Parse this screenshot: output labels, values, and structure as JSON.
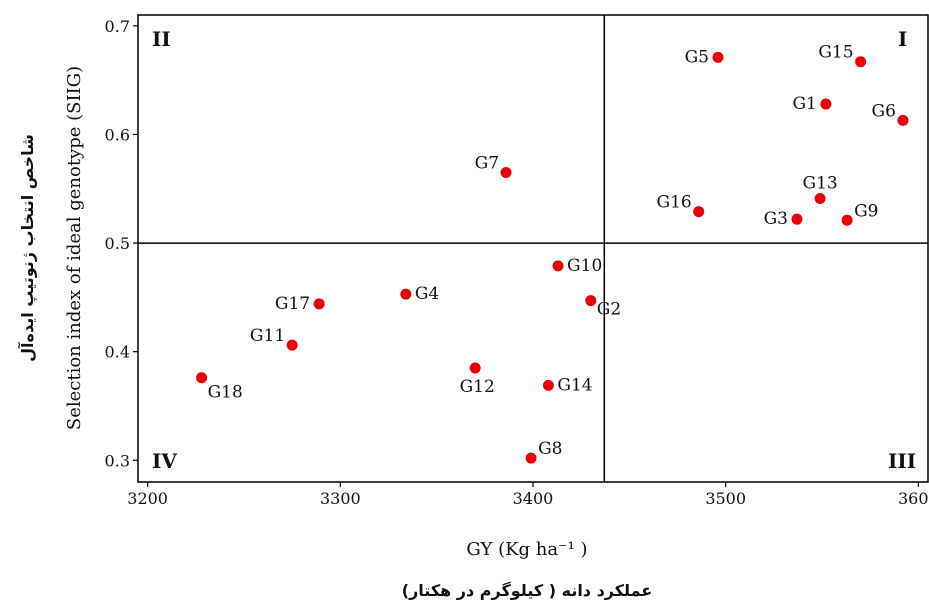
{
  "chart_data": {
    "type": "scatter",
    "xlabel": "GY (Kg ha⁻¹ )",
    "xlabel_translation": "عملکرد دانه ( کیلوگرم در هکتار)",
    "ylabel": "Selection index of ideal genotype (SIIG)",
    "ylabel_translation": "شاخص انتخاب ژنوتیپ ایده‌آل",
    "xlim": [
      3195,
      3605
    ],
    "ylim": [
      0.28,
      0.71
    ],
    "xticks": [
      3200,
      3300,
      3400,
      3500,
      3600
    ],
    "yticks": [
      0.3,
      0.4,
      0.5,
      0.6,
      0.7
    ],
    "ytick_labels": [
      "0.3",
      "0.4",
      "0.5",
      "0.6",
      "0.7"
    ],
    "reference_lines": {
      "x": 3437,
      "y": 0.5
    },
    "quadrants": {
      "top_left": "II",
      "top_right": "I",
      "bottom_left": "IV",
      "bottom_right": "III"
    },
    "marker_color": "#e8000b",
    "points": [
      {
        "label": "G1",
        "x": 3552,
        "y": 0.628,
        "label_pos": "left"
      },
      {
        "label": "G2",
        "x": 3430,
        "y": 0.447,
        "label_pos": "right-low"
      },
      {
        "label": "G3",
        "x": 3537,
        "y": 0.522,
        "label_pos": "left"
      },
      {
        "label": "G4",
        "x": 3334,
        "y": 0.453,
        "label_pos": "right"
      },
      {
        "label": "G5",
        "x": 3496,
        "y": 0.671,
        "label_pos": "left"
      },
      {
        "label": "G6",
        "x": 3592,
        "y": 0.613,
        "label_pos": "upper-left"
      },
      {
        "label": "G7",
        "x": 3386,
        "y": 0.565,
        "label_pos": "upper-left"
      },
      {
        "label": "G8",
        "x": 3399,
        "y": 0.302,
        "label_pos": "upper-right"
      },
      {
        "label": "G9",
        "x": 3563,
        "y": 0.521,
        "label_pos": "upper-right"
      },
      {
        "label": "G10",
        "x": 3413,
        "y": 0.479,
        "label_pos": "right"
      },
      {
        "label": "G11",
        "x": 3275,
        "y": 0.406,
        "label_pos": "upper-left"
      },
      {
        "label": "G12",
        "x": 3370,
        "y": 0.385,
        "label_pos": "below"
      },
      {
        "label": "G13",
        "x": 3549,
        "y": 0.541,
        "label_pos": "above"
      },
      {
        "label": "G14",
        "x": 3408,
        "y": 0.369,
        "label_pos": "right"
      },
      {
        "label": "G15",
        "x": 3570,
        "y": 0.667,
        "label_pos": "upper-left"
      },
      {
        "label": "G16",
        "x": 3486,
        "y": 0.529,
        "label_pos": "upper-left"
      },
      {
        "label": "G17",
        "x": 3289,
        "y": 0.444,
        "label_pos": "left"
      },
      {
        "label": "G18",
        "x": 3228,
        "y": 0.376,
        "label_pos": "lower-right"
      }
    ]
  }
}
